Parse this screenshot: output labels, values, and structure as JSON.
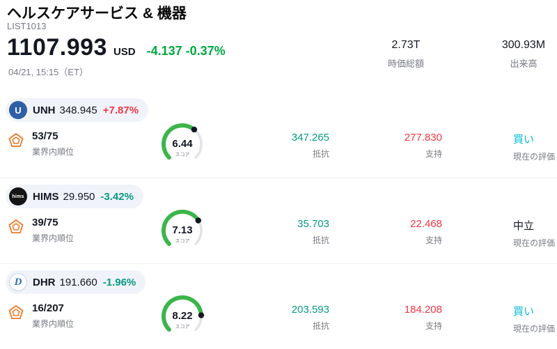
{
  "colors": {
    "up": "#f23645",
    "down": "#089981",
    "header_change": "#00a843",
    "buy": "#00bcd4",
    "neutral": "#131722",
    "gauge_fill": "#3cb54a",
    "gauge_track": "#e0e3eb",
    "text": "#131722",
    "muted": "#787b86",
    "pill_bg": "#f0f3fa"
  },
  "header": {
    "title": "ヘルスケアサービス & 機器",
    "subtitle": "LIST1013",
    "price": "1107.993",
    "currency": "USD",
    "change": "-4.137 -0.37%",
    "datetime": "04/21, 15:15（ET）",
    "market_cap": {
      "value": "2.73T",
      "label": "時価総額"
    },
    "volume": {
      "value": "300.93M",
      "label": "出来高"
    }
  },
  "rows": [
    {
      "ticker": "UNH",
      "price": "348.945",
      "change": "+7.87%",
      "icon": {
        "glyph": "U",
        "bg": "#2f5fa5",
        "fg": "#ffffff"
      },
      "rank": "53/75",
      "rank_label": "業界内順位",
      "gauge": {
        "score": "6.44",
        "max": 10,
        "label": "スコア"
      },
      "resistance": {
        "value": "347.265",
        "label": "抵抗"
      },
      "support": {
        "value": "277.830",
        "label": "支持"
      },
      "rating": {
        "value": "買い",
        "label": "現在の評価",
        "color": "#00bcd4"
      }
    },
    {
      "ticker": "HIMS",
      "price": "29.950",
      "change": "-3.42%",
      "icon": {
        "glyph": "hims",
        "bg": "#141414",
        "fg": "#ffffff"
      },
      "rank": "39/75",
      "rank_label": "業界内順位",
      "gauge": {
        "score": "7.13",
        "max": 10,
        "label": "スコア"
      },
      "resistance": {
        "value": "35.703",
        "label": "抵抗"
      },
      "support": {
        "value": "22.468",
        "label": "支持"
      },
      "rating": {
        "value": "中立",
        "label": "現在の評価",
        "color": "#131722"
      }
    },
    {
      "ticker": "DHR",
      "price": "191.660",
      "change": "-1.96%",
      "icon": {
        "glyph": "D",
        "bg": "#ffffff",
        "fg": "#2e6cb5"
      },
      "rank": "16/207",
      "rank_label": "業界内順位",
      "gauge": {
        "score": "8.22",
        "max": 10,
        "label": "スコア"
      },
      "resistance": {
        "value": "203.593",
        "label": "抵抗"
      },
      "support": {
        "value": "184.208",
        "label": "支持"
      },
      "rating": {
        "value": "買い",
        "label": "現在の評価",
        "color": "#00bcd4"
      }
    }
  ]
}
